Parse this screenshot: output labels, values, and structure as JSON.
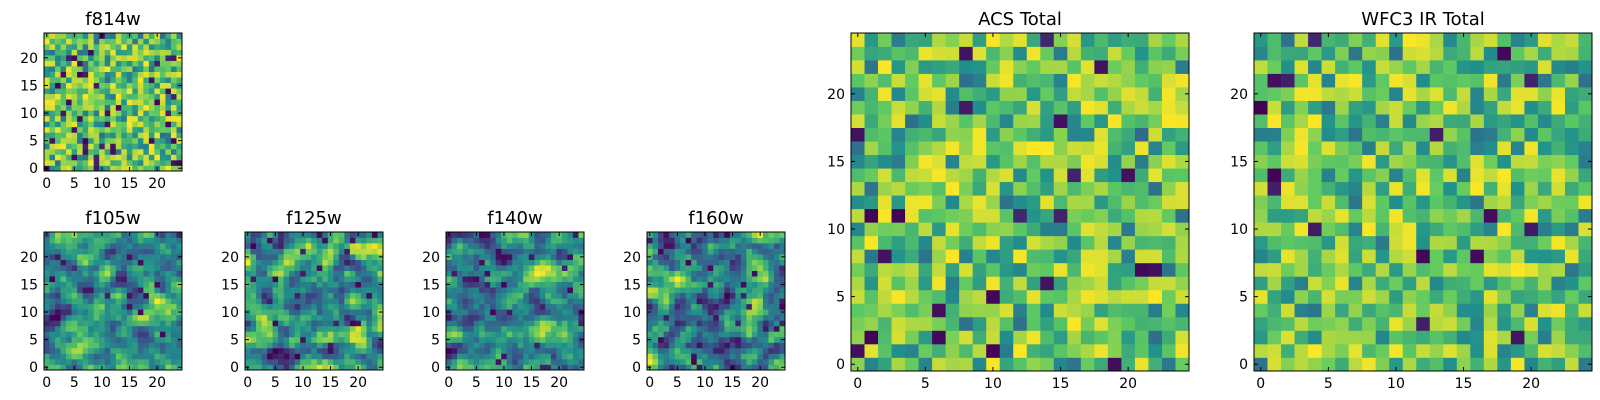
{
  "chart_data": [
    {
      "type": "heatmap",
      "title": "f814w",
      "grid_size": 25,
      "pattern": "fine-noise",
      "seed": 814,
      "dark_fraction": 0.06,
      "xticks": [
        0,
        5,
        10,
        15,
        20
      ],
      "yticks": [
        0,
        5,
        10,
        15,
        20
      ],
      "xlim": [
        -0.5,
        24.5
      ],
      "ylim": [
        -0.5,
        24.5
      ],
      "colormap": [
        "#440154",
        "#3b528b",
        "#21918c",
        "#5ec962",
        "#fde725"
      ]
    },
    {
      "type": "heatmap",
      "title": "f105w",
      "grid_size": 25,
      "pattern": "smooth-noise",
      "seed": 105,
      "dark_fraction": 0.02,
      "xticks": [
        0,
        5,
        10,
        15,
        20
      ],
      "yticks": [
        0,
        5,
        10,
        15,
        20
      ],
      "xlim": [
        -0.5,
        24.5
      ],
      "ylim": [
        -0.5,
        24.5
      ],
      "colormap": [
        "#440154",
        "#3b528b",
        "#21918c",
        "#5ec962",
        "#fde725"
      ]
    },
    {
      "type": "heatmap",
      "title": "f125w",
      "grid_size": 25,
      "pattern": "smooth-noise",
      "seed": 125,
      "dark_fraction": 0.03,
      "xticks": [
        0,
        5,
        10,
        15,
        20
      ],
      "yticks": [
        0,
        5,
        10,
        15,
        20
      ],
      "xlim": [
        -0.5,
        24.5
      ],
      "ylim": [
        -0.5,
        24.5
      ],
      "colormap": [
        "#440154",
        "#3b528b",
        "#21918c",
        "#5ec962",
        "#fde725"
      ]
    },
    {
      "type": "heatmap",
      "title": "f140w",
      "grid_size": 25,
      "pattern": "smooth-noise",
      "seed": 140,
      "dark_fraction": 0.03,
      "xticks": [
        0,
        5,
        10,
        15,
        20
      ],
      "yticks": [
        0,
        5,
        10,
        15,
        20
      ],
      "xlim": [
        -0.5,
        24.5
      ],
      "ylim": [
        -0.5,
        24.5
      ],
      "colormap": [
        "#440154",
        "#3b528b",
        "#21918c",
        "#5ec962",
        "#fde725"
      ]
    },
    {
      "type": "heatmap",
      "title": "f160w",
      "grid_size": 25,
      "pattern": "smooth-noise",
      "seed": 160,
      "dark_fraction": 0.03,
      "xticks": [
        0,
        5,
        10,
        15,
        20
      ],
      "yticks": [
        0,
        5,
        10,
        15,
        20
      ],
      "xlim": [
        -0.5,
        24.5
      ],
      "ylim": [
        -0.5,
        24.5
      ],
      "colormap": [
        "#440154",
        "#3b528b",
        "#21918c",
        "#5ec962",
        "#fde725"
      ]
    },
    {
      "type": "heatmap",
      "title": "ACS Total",
      "grid_size": 25,
      "pattern": "fine-noise",
      "seed": 1001,
      "dark_fraction": 0.04,
      "xticks": [
        0,
        5,
        10,
        15,
        20
      ],
      "yticks": [
        0,
        5,
        10,
        15,
        20
      ],
      "xlim": [
        -0.5,
        24.5
      ],
      "ylim": [
        -0.5,
        24.5
      ],
      "colormap": [
        "#440154",
        "#3b528b",
        "#21918c",
        "#5ec962",
        "#fde725"
      ]
    },
    {
      "type": "heatmap",
      "title": "WFC3 IR Total",
      "grid_size": 25,
      "pattern": "fine-noise",
      "seed": 2002,
      "dark_fraction": 0.03,
      "xticks": [
        0,
        5,
        10,
        15,
        20
      ],
      "yticks": [
        0,
        5,
        10,
        15,
        20
      ],
      "xlim": [
        -0.5,
        24.5
      ],
      "ylim": [
        -0.5,
        24.5
      ],
      "colormap": [
        "#440154",
        "#3b528b",
        "#21918c",
        "#5ec962",
        "#fde725"
      ]
    }
  ]
}
